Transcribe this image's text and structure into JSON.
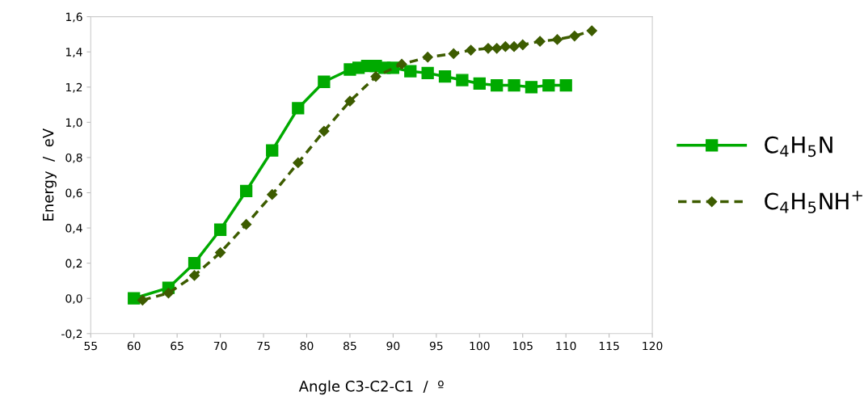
{
  "chart_data": {
    "type": "line",
    "xlabel": "Angle C3-C2-C1  /  º",
    "ylabel": "Energy  /  eV",
    "xlim": [
      55,
      120
    ],
    "xticks": [
      55,
      60,
      65,
      70,
      75,
      80,
      85,
      90,
      95,
      100,
      105,
      110,
      115,
      120
    ],
    "ylim": [
      -0.2,
      1.6
    ],
    "yticks": [
      {
        "value": -0.2,
        "label": "-0,2"
      },
      {
        "value": 0,
        "label": "0,0"
      },
      {
        "value": 0.2,
        "label": "0,2"
      },
      {
        "value": 0.4,
        "label": "0,4"
      },
      {
        "value": 0.6,
        "label": "0,6"
      },
      {
        "value": 0.8,
        "label": "0,8"
      },
      {
        "value": 1.0,
        "label": "1,0"
      },
      {
        "value": 1.2,
        "label": "1,2"
      },
      {
        "value": 1.4,
        "label": "1,4"
      },
      {
        "value": 1.6,
        "label": "1,6"
      }
    ],
    "grid": false,
    "legend": "right",
    "series": [
      {
        "name": "C$_{4}$H$_{5}$N",
        "color": "#00aa00",
        "marker": "square",
        "line_style": "solid",
        "x": [
          60,
          64,
          67,
          70,
          73,
          76,
          79,
          82,
          85,
          86,
          87,
          88,
          89,
          90,
          92,
          94,
          96,
          98,
          100,
          102,
          104,
          106,
          108,
          110
        ],
        "values": [
          0.0,
          0.06,
          0.2,
          0.39,
          0.61,
          0.84,
          1.08,
          1.23,
          1.3,
          1.31,
          1.32,
          1.32,
          1.31,
          1.31,
          1.29,
          1.28,
          1.26,
          1.24,
          1.22,
          1.21,
          1.21,
          1.2,
          1.21,
          1.21
        ]
      },
      {
        "name": "C$_{4}$H$_{5}$NH$^{+}$",
        "color": "#3d5c00",
        "marker": "diamond",
        "line_style": "dashed",
        "x": [
          61,
          64,
          67,
          70,
          73,
          76,
          79,
          82,
          85,
          88,
          91,
          94,
          97,
          99,
          101,
          102,
          103,
          104,
          105,
          107,
          109,
          111,
          113
        ],
        "values": [
          -0.01,
          0.03,
          0.13,
          0.26,
          0.42,
          0.59,
          0.77,
          0.95,
          1.12,
          1.26,
          1.33,
          1.37,
          1.39,
          1.41,
          1.42,
          1.42,
          1.43,
          1.43,
          1.44,
          1.46,
          1.47,
          1.49,
          1.52
        ]
      }
    ]
  }
}
